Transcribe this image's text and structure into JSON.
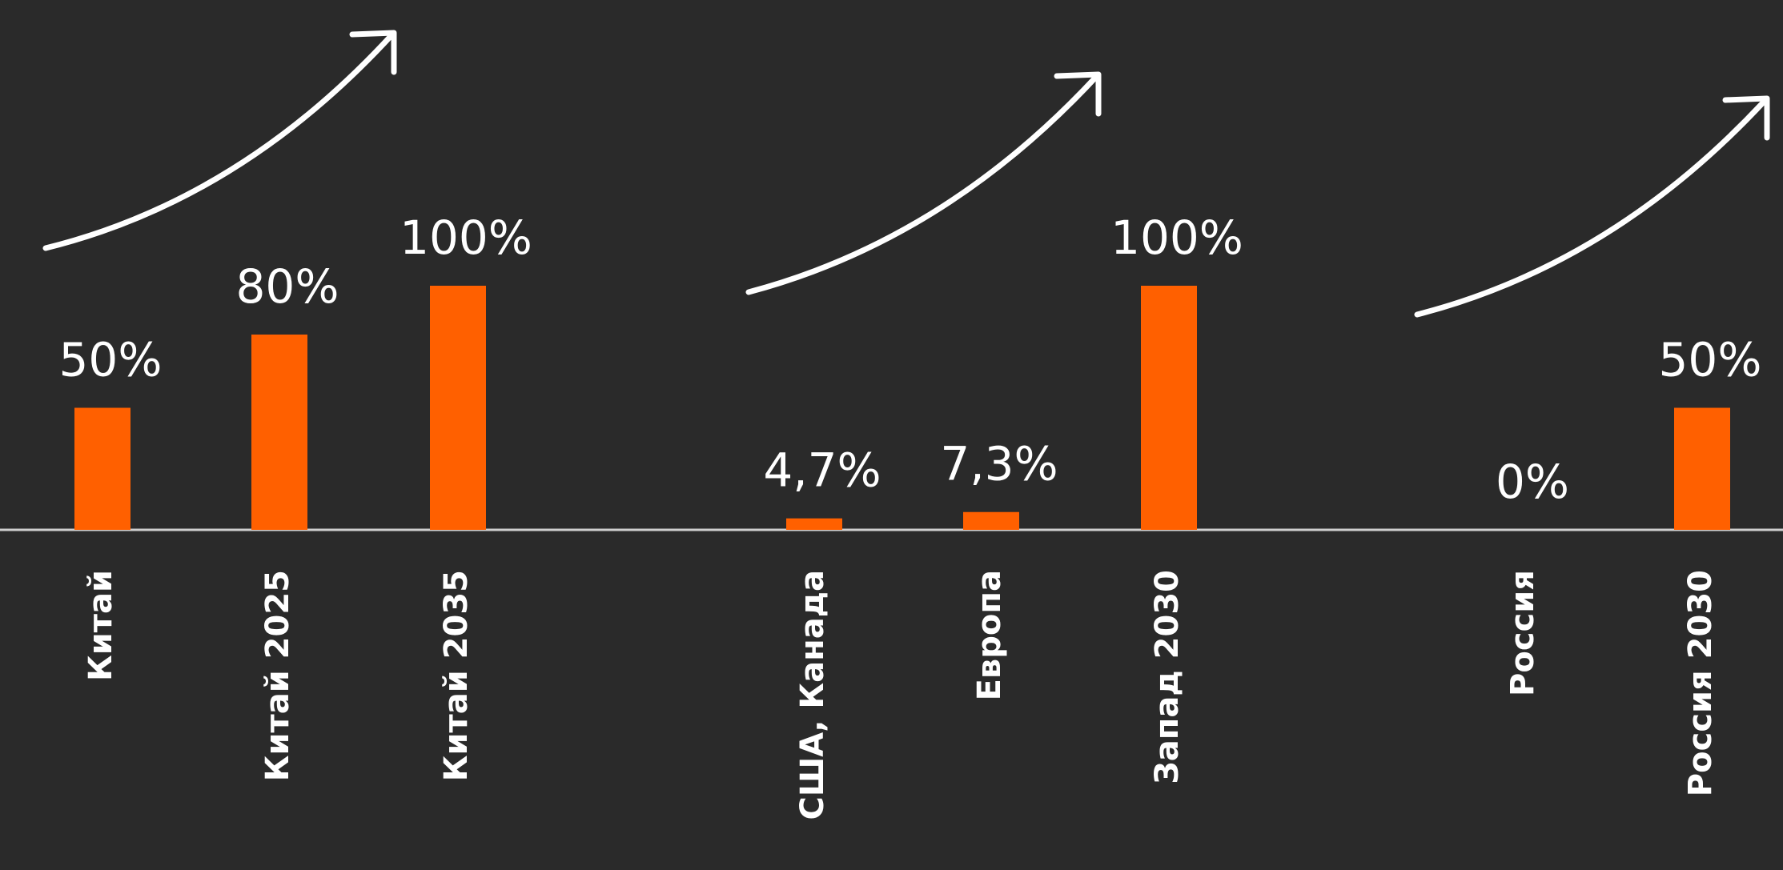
{
  "chart_data": {
    "type": "bar",
    "categories": [
      "Китай",
      "Китай 2025",
      "Китай 2035",
      "США, Канада",
      "Европа",
      "Запад 2030",
      "Россия",
      "Россия 2030"
    ],
    "values": [
      50,
      80,
      100,
      4.7,
      7.3,
      100,
      0,
      50
    ],
    "value_labels": [
      "50%",
      "80%",
      "100%",
      "4,7%",
      "7,3%",
      "100%",
      "0%",
      "50%"
    ],
    "color": "#ff6000"
  }
}
